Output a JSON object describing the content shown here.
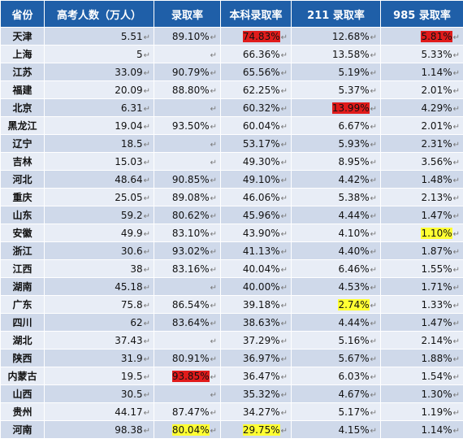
{
  "headers": [
    "省份",
    "高考人数（万人）",
    "录取率",
    "本科录取率",
    "211 录取率",
    "985 录取率"
  ],
  "mark": "↵",
  "colors": {
    "header_bg": "#1f5fa8",
    "highlight_red": "#e01b1b",
    "highlight_yellow": "#ffff33"
  },
  "rows": [
    {
      "province": "天津",
      "candidates": "5.51",
      "admission": "89.10%",
      "bachelor": "74.83%",
      "r211": "12.68%",
      "r985": "5.81%"
    },
    {
      "province": "上海",
      "candidates": "5",
      "admission": "",
      "bachelor": "66.36%",
      "r211": "13.58%",
      "r985": "5.33%"
    },
    {
      "province": "江苏",
      "candidates": "33.09",
      "admission": "90.79%",
      "bachelor": "65.56%",
      "r211": "5.19%",
      "r985": "1.14%"
    },
    {
      "province": "福建",
      "candidates": "20.09",
      "admission": "88.80%",
      "bachelor": "62.25%",
      "r211": "5.37%",
      "r985": "2.01%"
    },
    {
      "province": "北京",
      "candidates": "6.31",
      "admission": "",
      "bachelor": "60.32%",
      "r211": "13.99%",
      "r985": "4.29%"
    },
    {
      "province": "黑龙江",
      "candidates": "19.04",
      "admission": "93.50%",
      "bachelor": "60.04%",
      "r211": "6.67%",
      "r985": "2.01%"
    },
    {
      "province": "辽宁",
      "candidates": "18.5",
      "admission": "",
      "bachelor": "53.17%",
      "r211": "5.93%",
      "r985": "2.31%"
    },
    {
      "province": "吉林",
      "candidates": "15.03",
      "admission": "",
      "bachelor": "49.30%",
      "r211": "8.95%",
      "r985": "3.56%"
    },
    {
      "province": "河北",
      "candidates": "48.64",
      "admission": "90.85%",
      "bachelor": "49.10%",
      "r211": "4.42%",
      "r985": "1.48%"
    },
    {
      "province": "重庆",
      "candidates": "25.05",
      "admission": "89.08%",
      "bachelor": "46.06%",
      "r211": "5.38%",
      "r985": "2.13%"
    },
    {
      "province": "山东",
      "candidates": "59.2",
      "admission": "80.62%",
      "bachelor": "45.96%",
      "r211": "4.44%",
      "r985": "1.47%"
    },
    {
      "province": "安徽",
      "candidates": "49.9",
      "admission": "83.10%",
      "bachelor": "43.90%",
      "r211": "4.10%",
      "r985": "1.10%"
    },
    {
      "province": "浙江",
      "candidates": "30.6",
      "admission": "93.02%",
      "bachelor": "41.13%",
      "r211": "4.40%",
      "r985": "1.87%"
    },
    {
      "province": "江西",
      "candidates": "38",
      "admission": "83.16%",
      "bachelor": "40.04%",
      "r211": "6.46%",
      "r985": "1.55%"
    },
    {
      "province": "湖南",
      "candidates": "45.18",
      "admission": "",
      "bachelor": "40.00%",
      "r211": "4.53%",
      "r985": "1.71%"
    },
    {
      "province": "广东",
      "candidates": "75.8",
      "admission": "86.54%",
      "bachelor": "39.18%",
      "r211": "2.74%",
      "r985": "1.33%"
    },
    {
      "province": "四川",
      "candidates": "62",
      "admission": "83.64%",
      "bachelor": "38.63%",
      "r211": "4.44%",
      "r985": "1.47%"
    },
    {
      "province": "湖北",
      "candidates": "37.43",
      "admission": "",
      "bachelor": "37.29%",
      "r211": "5.16%",
      "r985": "2.14%"
    },
    {
      "province": "陕西",
      "candidates": "31.9",
      "admission": "80.91%",
      "bachelor": "36.97%",
      "r211": "5.67%",
      "r985": "1.88%"
    },
    {
      "province": "内蒙古",
      "candidates": "19.5",
      "admission": "93.85%",
      "bachelor": "36.47%",
      "r211": "6.03%",
      "r985": "1.54%"
    },
    {
      "province": "山西",
      "candidates": "30.5",
      "admission": "",
      "bachelor": "35.32%",
      "r211": "4.67%",
      "r985": "1.30%"
    },
    {
      "province": "贵州",
      "candidates": "44.17",
      "admission": "87.47%",
      "bachelor": "34.27%",
      "r211": "5.17%",
      "r985": "1.19%"
    },
    {
      "province": "河南",
      "candidates": "98.38",
      "admission": "80.04%",
      "bachelor": "29.75%",
      "r211": "4.15%",
      "r985": "1.14%"
    }
  ],
  "highlights": [
    {
      "row": 0,
      "field": "bachelor",
      "color": "red"
    },
    {
      "row": 0,
      "field": "r985",
      "color": "red"
    },
    {
      "row": 4,
      "field": "r211",
      "color": "red"
    },
    {
      "row": 11,
      "field": "r985",
      "color": "yellow"
    },
    {
      "row": 15,
      "field": "r211",
      "color": "yellow"
    },
    {
      "row": 19,
      "field": "admission",
      "color": "red"
    },
    {
      "row": 22,
      "field": "admission",
      "color": "yellow"
    },
    {
      "row": 22,
      "field": "bachelor",
      "color": "yellow"
    }
  ]
}
